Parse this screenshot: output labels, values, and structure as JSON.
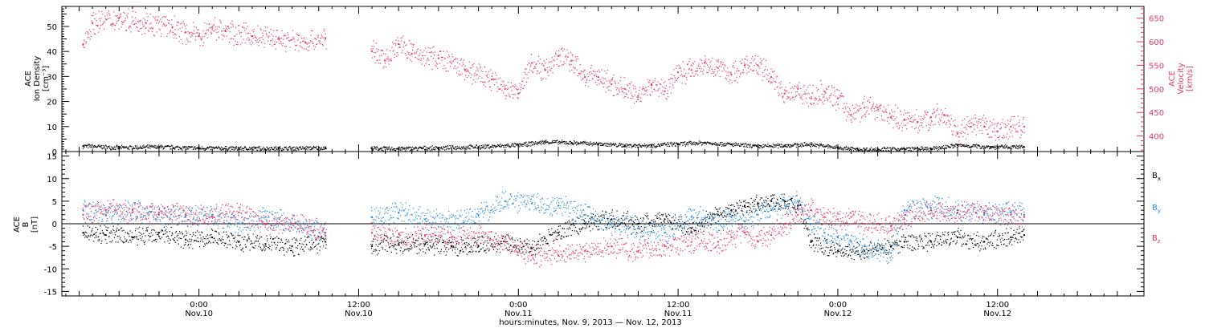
{
  "chart_data": [
    {
      "type": "scatter",
      "panel": "plasma",
      "ylabel_lines": [
        "ACE",
        "Ion Density",
        "[cm⁻³]"
      ],
      "ylabel_right_lines": [
        "ACE",
        "Velocity",
        "[km/s]"
      ],
      "ylim": [
        0,
        58
      ],
      "ylim_right": [
        367,
        675
      ],
      "yticks_left": [
        0,
        10,
        20,
        30,
        40,
        50
      ],
      "yticks_right": [
        400,
        450,
        500,
        550,
        600,
        650
      ],
      "series": [
        {
          "axis": "left",
          "color": "#000000",
          "x": [
            -8.7,
            -6,
            -3,
            0,
            3,
            6,
            9.5,
            13,
            15,
            18,
            21,
            24,
            26,
            28,
            30,
            32,
            34,
            36,
            38,
            40,
            42,
            44,
            46,
            48,
            49.5,
            51,
            53,
            55,
            57,
            59.5,
            62
          ],
          "values": [
            2.2,
            1.5,
            1.8,
            1.3,
            1.2,
            1.2,
            1.4,
            1.2,
            1.1,
            1.4,
            1.8,
            2.5,
            3.8,
            3.5,
            3.0,
            2.4,
            2.4,
            3.0,
            3.5,
            2.8,
            2.0,
            2.4,
            2.8,
            1.5,
            0.8,
            0.8,
            1.0,
            1.0,
            2.5,
            1.8,
            1.8
          ]
        },
        {
          "axis": "right",
          "color": "#e8386a",
          "x": [
            -8.7,
            -8,
            -6,
            -4,
            -2,
            -1,
            0,
            1,
            2,
            4,
            6,
            8,
            9.5,
            13,
            14,
            15,
            16,
            18,
            20,
            22,
            23,
            24,
            25,
            26,
            27,
            28,
            29,
            30,
            31,
            32,
            33,
            34,
            35,
            36,
            37,
            38,
            39,
            40,
            41,
            42,
            43,
            44,
            45,
            46,
            47,
            48,
            49,
            50,
            51,
            52,
            53,
            54,
            55,
            56,
            57,
            58,
            59,
            60,
            61,
            62
          ],
          "values": [
            595,
            640,
            650,
            640,
            630,
            620,
            612,
            630,
            622,
            612,
            606,
            598,
            608,
            580,
            560,
            595,
            575,
            565,
            540,
            520,
            500,
            490,
            555,
            540,
            570,
            560,
            525,
            525,
            510,
            500,
            485,
            510,
            495,
            535,
            540,
            555,
            545,
            530,
            550,
            550,
            525,
            490,
            500,
            480,
            495,
            480,
            445,
            460,
            460,
            440,
            435,
            430,
            440,
            445,
            405,
            420,
            420,
            410,
            420,
            420
          ]
        }
      ]
    },
    {
      "type": "scatter",
      "panel": "magnetic",
      "ylabel_lines": [
        "ACE",
        "B",
        "[nT]"
      ],
      "ylim": [
        -16,
        16
      ],
      "yticks": [
        -15,
        -10,
        -5,
        0,
        5,
        10,
        15
      ],
      "zero_line": true,
      "series": [
        {
          "name": "B",
          "sub": "x",
          "label_color": "#000000",
          "color": "#000000",
          "x": [
            -8.7,
            -7,
            -5,
            -3,
            -1,
            1,
            3,
            5,
            7,
            9.5,
            13,
            15,
            17,
            19,
            21,
            23,
            25,
            27,
            29,
            31,
            33,
            35,
            37,
            39,
            40,
            41,
            42,
            43,
            44,
            45,
            46,
            48,
            50,
            52,
            53,
            55,
            57,
            59,
            61,
            62
          ],
          "values": [
            -2,
            -2.5,
            -3,
            -2,
            -3.5,
            -3,
            -4,
            -4.5,
            -5,
            -4,
            -5,
            -4.5,
            -4.5,
            -5,
            -5,
            -4,
            -5.5,
            -2,
            0,
            1,
            0,
            1,
            -1,
            2,
            3,
            4,
            4.5,
            5,
            5,
            4,
            -4,
            -6,
            -6,
            -5,
            -4,
            -4,
            -3,
            -4,
            -3,
            -2.5
          ]
        },
        {
          "name": "B",
          "sub": "y",
          "label_color": "#2b8de0",
          "color": "#2b8de0",
          "x": [
            -8.7,
            -7,
            -5,
            -3,
            -1,
            1,
            3,
            5,
            7,
            9.5,
            13,
            15,
            17,
            19,
            21,
            23,
            25,
            27,
            29,
            31,
            33,
            35,
            37,
            39,
            40,
            41,
            42,
            43,
            44,
            45,
            46,
            47,
            48,
            49,
            50,
            51,
            52,
            53,
            55,
            57,
            59,
            61,
            62
          ],
          "values": [
            3,
            2,
            3,
            2,
            1.5,
            2,
            0,
            1.5,
            0,
            -2,
            1.5,
            2.5,
            1,
            0,
            2,
            5,
            4.5,
            4,
            2,
            0,
            -1,
            -2,
            1.5,
            0,
            1.5,
            0.5,
            2,
            3,
            4,
            5,
            0,
            -2,
            -3,
            -4,
            -5,
            -6,
            -6.5,
            3,
            3.5,
            3,
            2,
            2.5,
            2
          ]
        },
        {
          "name": "B",
          "sub": "z",
          "label_color": "#e8386a",
          "color": "#e8386a",
          "x": [
            -8.7,
            -7,
            -5,
            -3,
            -1,
            1,
            3,
            5,
            7,
            9.5,
            13,
            15,
            17,
            19,
            21,
            23,
            25,
            27,
            29,
            31,
            33,
            35,
            37,
            39,
            40,
            41,
            42,
            43,
            44,
            45,
            46,
            47,
            48,
            49,
            50,
            51,
            52,
            53,
            55,
            57,
            59,
            61,
            62
          ],
          "values": [
            2,
            3,
            2.5,
            2.5,
            2,
            1.5,
            2.5,
            0,
            0,
            -2,
            -2,
            -3,
            -2.5,
            -3,
            -3,
            -4,
            -7,
            -7,
            -6,
            -5,
            -6,
            -5,
            -4,
            -4,
            -3,
            -2,
            -4,
            -2.5,
            0,
            2,
            3,
            1.5,
            1,
            1.5,
            0,
            0,
            -0.5,
            1,
            3,
            2.5,
            2.5,
            2,
            1.5
          ]
        }
      ]
    }
  ],
  "axis": {
    "xlim": [
      -10.3,
      71
    ],
    "ticks": [
      {
        "hours": 0,
        "time": "0:00",
        "date": "Nov.10"
      },
      {
        "hours": 12,
        "time": "12:00",
        "date": "Nov.10"
      },
      {
        "hours": 24,
        "time": "0:00",
        "date": "Nov.11"
      },
      {
        "hours": 36,
        "time": "12:00",
        "date": "Nov.11"
      },
      {
        "hours": 48,
        "time": "0:00",
        "date": "Nov.12"
      },
      {
        "hours": 60,
        "time": "12:00",
        "date": "Nov.12"
      }
    ],
    "xlabel": "hours:minutes, Nov.  9, 2013 — Nov. 12, 2013"
  }
}
